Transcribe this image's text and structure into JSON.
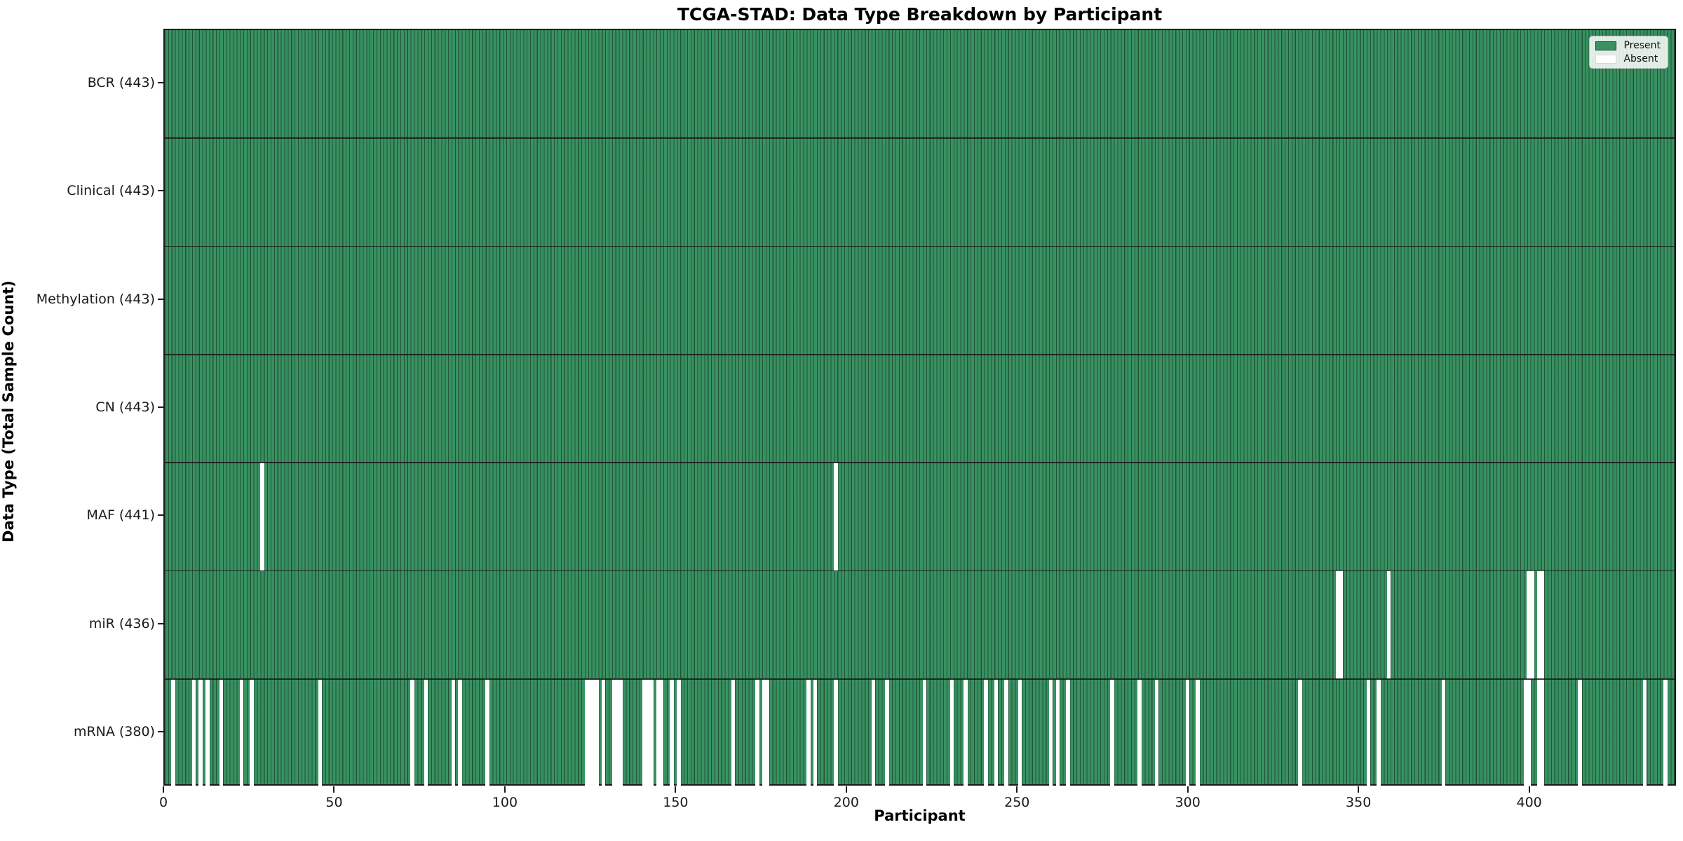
{
  "chart_data": {
    "type": "heatmap",
    "title": "TCGA-STAD: Data Type Breakdown by Participant",
    "xlabel": "Participant",
    "ylabel": "Data Type (Total Sample Count)",
    "n_participants": 443,
    "x_ticks": [
      0,
      50,
      100,
      150,
      200,
      250,
      300,
      350,
      400
    ],
    "xlim": [
      0,
      443
    ],
    "grid": "column edges drawn as dark vertical lines, dark horizontal separators between rows",
    "legend_position": "upper right",
    "colors": {
      "present": "#389161",
      "absent": "#ffffff",
      "column_edge": "rgba(0,0,0,0.42)",
      "row_separator": "#1c1c1c",
      "spine": "#1c1c1c",
      "legend_border": "#bfbfbf"
    },
    "legend": [
      {
        "label": "Present",
        "color": "#389161"
      },
      {
        "label": "Absent",
        "color": "#ffffff"
      }
    ],
    "rows": [
      {
        "label": "BCR",
        "total": 443,
        "display": "BCR (443)",
        "absent": []
      },
      {
        "label": "Clinical",
        "total": 443,
        "display": "Clinical (443)",
        "absent": []
      },
      {
        "label": "Methylation",
        "total": 443,
        "display": "Methylation (443)",
        "absent": []
      },
      {
        "label": "CN",
        "total": 443,
        "display": "CN (443)",
        "absent": []
      },
      {
        "label": "MAF",
        "total": 441,
        "display": "MAF (441)",
        "absent": [
          28,
          196
        ]
      },
      {
        "label": "miR",
        "total": 436,
        "display": "miR (436)",
        "absent": [
          343,
          344,
          358,
          399,
          400,
          402,
          403
        ]
      },
      {
        "label": "mRNA",
        "total": 380,
        "display": "mRNA (380)",
        "absent": [
          2,
          8,
          10,
          12,
          16,
          22,
          25,
          45,
          72,
          76,
          84,
          86,
          94,
          123,
          124,
          125,
          126,
          128,
          131,
          132,
          133,
          140,
          141,
          142,
          144,
          145,
          148,
          150,
          166,
          173,
          175,
          176,
          188,
          190,
          196,
          207,
          211,
          222,
          230,
          234,
          240,
          243,
          246,
          250,
          259,
          261,
          264,
          277,
          285,
          290,
          299,
          302,
          332,
          352,
          355,
          374,
          398,
          399,
          402,
          403,
          414,
          433,
          439
        ]
      }
    ]
  }
}
